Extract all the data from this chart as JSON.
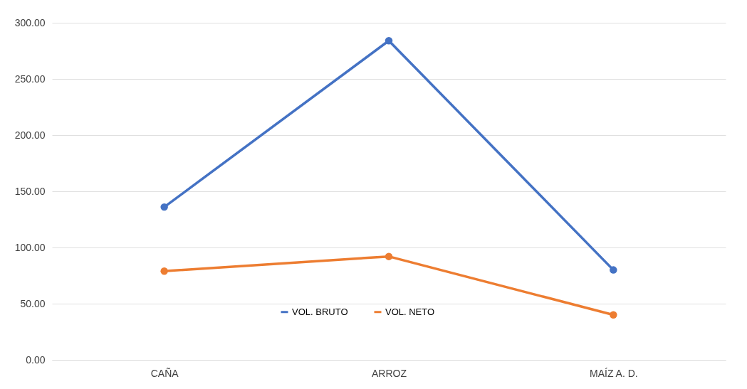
{
  "chart_data": {
    "type": "line",
    "categories": [
      "CAÑA",
      "ARROZ",
      "MAÍZ A. D."
    ],
    "series": [
      {
        "name": "VOL. BRUTO",
        "color": "#4472c4",
        "values": [
          136,
          284,
          80
        ]
      },
      {
        "name": "VOL. NETO",
        "color": "#ed7d31",
        "values": [
          79,
          92,
          40
        ]
      }
    ],
    "ylim": [
      0,
      300
    ],
    "yticks": [
      {
        "value": 0,
        "label": "0.00"
      },
      {
        "value": 50,
        "label": "50.00"
      },
      {
        "value": 100,
        "label": "100.00"
      },
      {
        "value": 150,
        "label": "150.00"
      },
      {
        "value": 200,
        "label": "200.00"
      },
      {
        "value": 250,
        "label": "250.00"
      },
      {
        "value": 300,
        "label": "300.00"
      }
    ],
    "grid": "y",
    "legend": "bottom",
    "marker": "circle",
    "line_style": "solid"
  }
}
